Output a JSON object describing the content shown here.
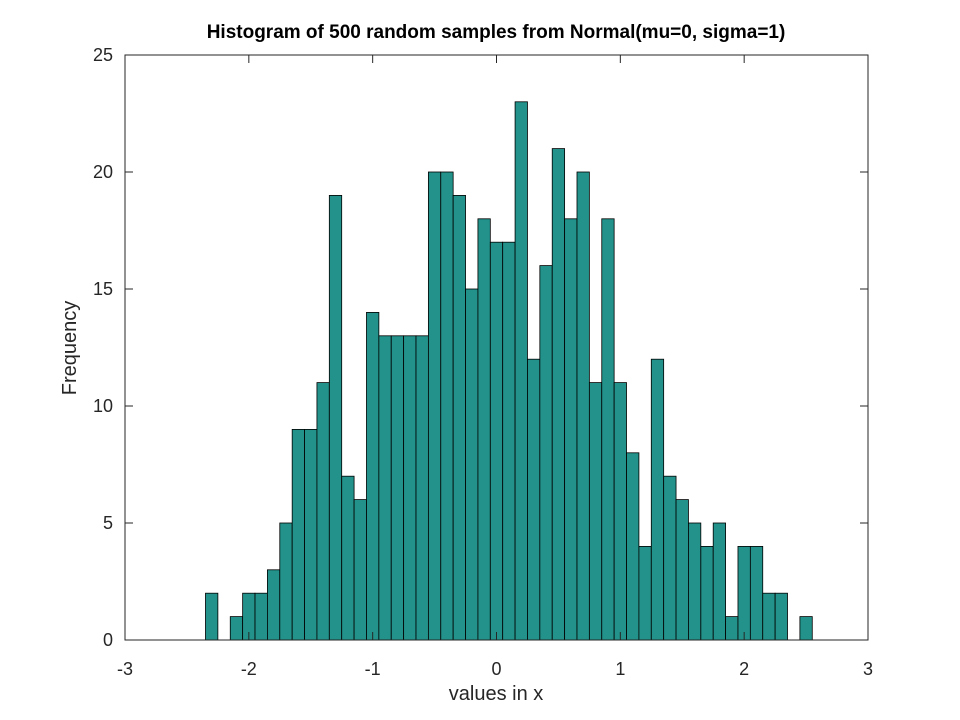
{
  "chart_data": {
    "type": "bar",
    "title": "Histogram of 500 random samples from Normal(mu=0, sigma=1)",
    "xlabel": "values in x",
    "ylabel": "Frequency",
    "xlim": [
      -3,
      3
    ],
    "ylim": [
      0,
      25
    ],
    "xticks": [
      "-3",
      "-2",
      "-1",
      "0",
      "1",
      "2",
      "3"
    ],
    "yticks": [
      "0",
      "5",
      "10",
      "15",
      "20",
      "25"
    ],
    "bar_color": "#23928a",
    "edge_color": "#000000",
    "grid": false,
    "bin_start": -2.35,
    "bin_width": 0.1,
    "values": [
      2,
      0,
      1,
      2,
      2,
      3,
      5,
      9,
      9,
      11,
      19,
      7,
      6,
      14,
      13,
      13,
      13,
      13,
      20,
      20,
      19,
      15,
      18,
      17,
      17,
      23,
      12,
      16,
      21,
      18,
      20,
      11,
      18,
      11,
      8,
      4,
      12,
      7,
      6,
      5,
      4,
      5,
      1,
      4,
      4,
      2,
      2,
      0,
      1
    ]
  }
}
